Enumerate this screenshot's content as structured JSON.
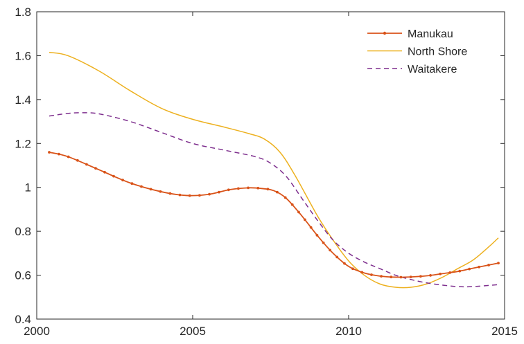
{
  "chart_data": {
    "type": "line",
    "title": "",
    "xlabel": "",
    "ylabel": "",
    "xlim": [
      2000,
      2015
    ],
    "ylim": [
      0.4,
      1.8
    ],
    "x_ticks": [
      2000,
      2005,
      2010,
      2015
    ],
    "y_ticks": [
      0.4,
      0.6,
      0.8,
      1.0,
      1.2,
      1.4,
      1.6,
      1.8
    ],
    "x_tick_labels": [
      "2000",
      "2005",
      "2010",
      "2015"
    ],
    "y_tick_labels": [
      "0.4",
      "0.6",
      "0.8",
      "1",
      "1.2",
      "1.4",
      "1.6",
      "1.8"
    ],
    "grid": false,
    "legend_position": "top-right",
    "series": [
      {
        "name": "Manukau",
        "color": "#D95319",
        "line_style": "solid",
        "marker": "dot",
        "x": [
          2000.4,
          2001.0,
          2002.0,
          2003.0,
          2004.0,
          2004.8,
          2005.5,
          2006.2,
          2006.8,
          2007.2,
          2007.6,
          2008.0,
          2008.5,
          2009.0,
          2009.5,
          2010.0,
          2010.5,
          2011.0,
          2011.5,
          2012.0,
          2012.5,
          2013.0,
          2013.5,
          2014.0,
          2014.8
        ],
        "y": [
          1.16,
          1.14,
          1.08,
          1.02,
          0.98,
          0.963,
          0.968,
          0.99,
          0.998,
          0.995,
          0.985,
          0.95,
          0.87,
          0.78,
          0.7,
          0.64,
          0.61,
          0.596,
          0.591,
          0.592,
          0.597,
          0.607,
          0.617,
          0.632,
          0.655
        ]
      },
      {
        "name": "North Shore",
        "color": "#EDB120",
        "line_style": "solid",
        "marker": "none",
        "x": [
          2000.4,
          2001.0,
          2002.0,
          2003.0,
          2004.0,
          2005.0,
          2006.0,
          2006.8,
          2007.3,
          2007.8,
          2008.3,
          2009.0,
          2009.5,
          2010.0,
          2010.5,
          2011.0,
          2011.5,
          2012.0,
          2012.5,
          2013.0,
          2013.5,
          2014.0,
          2014.5,
          2014.8
        ],
        "y": [
          1.615,
          1.6,
          1.53,
          1.44,
          1.36,
          1.31,
          1.275,
          1.245,
          1.22,
          1.16,
          1.05,
          0.87,
          0.76,
          0.665,
          0.6,
          0.56,
          0.545,
          0.545,
          0.56,
          0.59,
          0.63,
          0.67,
          0.73,
          0.77
        ]
      },
      {
        "name": "Waitakere",
        "color": "#7E2F8E",
        "line_style": "dashed",
        "marker": "none",
        "x": [
          2000.4,
          2001.0,
          2001.5,
          2002.0,
          2003.0,
          2004.0,
          2005.0,
          2006.0,
          2007.0,
          2007.5,
          2008.0,
          2008.5,
          2009.0,
          2009.5,
          2010.0,
          2010.5,
          2011.0,
          2011.5,
          2012.0,
          2012.5,
          2013.0,
          2013.5,
          2014.0,
          2014.8
        ],
        "y": [
          1.325,
          1.337,
          1.34,
          1.335,
          1.3,
          1.25,
          1.2,
          1.17,
          1.14,
          1.11,
          1.05,
          0.95,
          0.85,
          0.76,
          0.7,
          0.66,
          0.63,
          0.6,
          0.58,
          0.565,
          0.555,
          0.548,
          0.548,
          0.557
        ]
      }
    ]
  }
}
